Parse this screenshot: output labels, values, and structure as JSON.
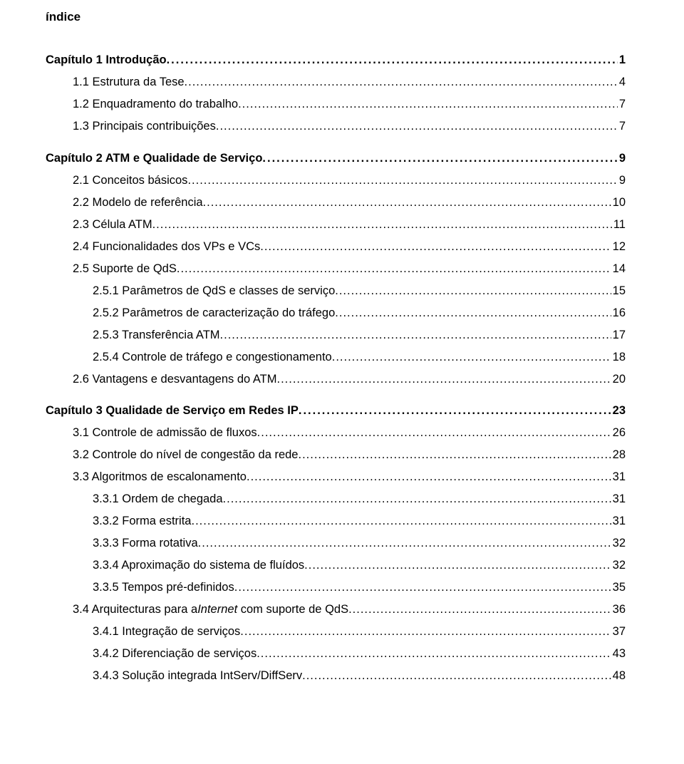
{
  "title": "índice",
  "dots_chapter": "...........................................................................................................",
  "dots_normal": "........................................................................................................................................................",
  "blocks": [
    {
      "entries": [
        {
          "level": 0,
          "label": "Capítulo 1   Introdução",
          "page": "1"
        },
        {
          "level": 1,
          "label": "1.1 Estrutura da Tese",
          "page": "4"
        },
        {
          "level": 1,
          "label": "1.2 Enquadramento do trabalho",
          "page": "7"
        },
        {
          "level": 1,
          "label": "1.3 Principais contribuições",
          "page": "7"
        }
      ]
    },
    {
      "entries": [
        {
          "level": 0,
          "label": "Capítulo 2   ATM e Qualidade de Serviço",
          "page": "9"
        },
        {
          "level": 1,
          "label": "2.1 Conceitos básicos",
          "page": "9"
        },
        {
          "level": 1,
          "label": "2.2 Modelo de referência",
          "page": "10"
        },
        {
          "level": 1,
          "label": "2.3 Célula ATM",
          "page": "11"
        },
        {
          "level": 1,
          "label": "2.4 Funcionalidades dos VPs e VCs",
          "page": "12"
        },
        {
          "level": 1,
          "label": "2.5 Suporte de QdS",
          "page": "14"
        },
        {
          "level": 2,
          "label": "2.5.1 Parâmetros de QdS e classes de serviço",
          "page": "15"
        },
        {
          "level": 2,
          "label": "2.5.2 Parâmetros de caracterização do tráfego",
          "page": "16"
        },
        {
          "level": 2,
          "label": "2.5.3 Transferência ATM",
          "page": "17"
        },
        {
          "level": 2,
          "label": "2.5.4 Controle de tráfego e congestionamento",
          "page": "18"
        },
        {
          "level": 1,
          "label": "2.6 Vantagens e desvantagens do ATM",
          "page": "20"
        }
      ]
    },
    {
      "entries": [
        {
          "level": 0,
          "label": "Capítulo 3   Qualidade de Serviço em Redes IP",
          "page": " 23"
        },
        {
          "level": 1,
          "label": "3.1 Controle de admissão de fluxos",
          "page": "26"
        },
        {
          "level": 1,
          "label": "3.2 Controle do nível de congestão da rede",
          "page": "28"
        },
        {
          "level": 1,
          "label": "3.3 Algoritmos de escalonamento",
          "page": "31"
        },
        {
          "level": 2,
          "label": "3.3.1 Ordem de chegada",
          "page": "31"
        },
        {
          "level": 2,
          "label": "3.3.2 Forma estrita",
          "page": "31"
        },
        {
          "level": 2,
          "label": "3.3.3 Forma rotativa",
          "page": "32"
        },
        {
          "level": 2,
          "label": "3.3.4 Aproximação do sistema de fluídos",
          "page": "32"
        },
        {
          "level": 2,
          "label": "3.3.5 Tempos pré-definidos",
          "page": "35"
        },
        {
          "level": 1,
          "label": "3.4 Arquitecturas para a",
          "italic_tail": "Internet",
          "label_tail": " com suporte de QdS",
          "page": "36"
        },
        {
          "level": 2,
          "label": "3.4.1 Integração de serviços",
          "page": "37"
        },
        {
          "level": 2,
          "label": "3.4.2 Diferenciação de serviços",
          "page": "43"
        },
        {
          "level": 2,
          "label": "3.4.3 Solução integrada IntServ/DiffServ",
          "page": "48"
        }
      ]
    }
  ]
}
